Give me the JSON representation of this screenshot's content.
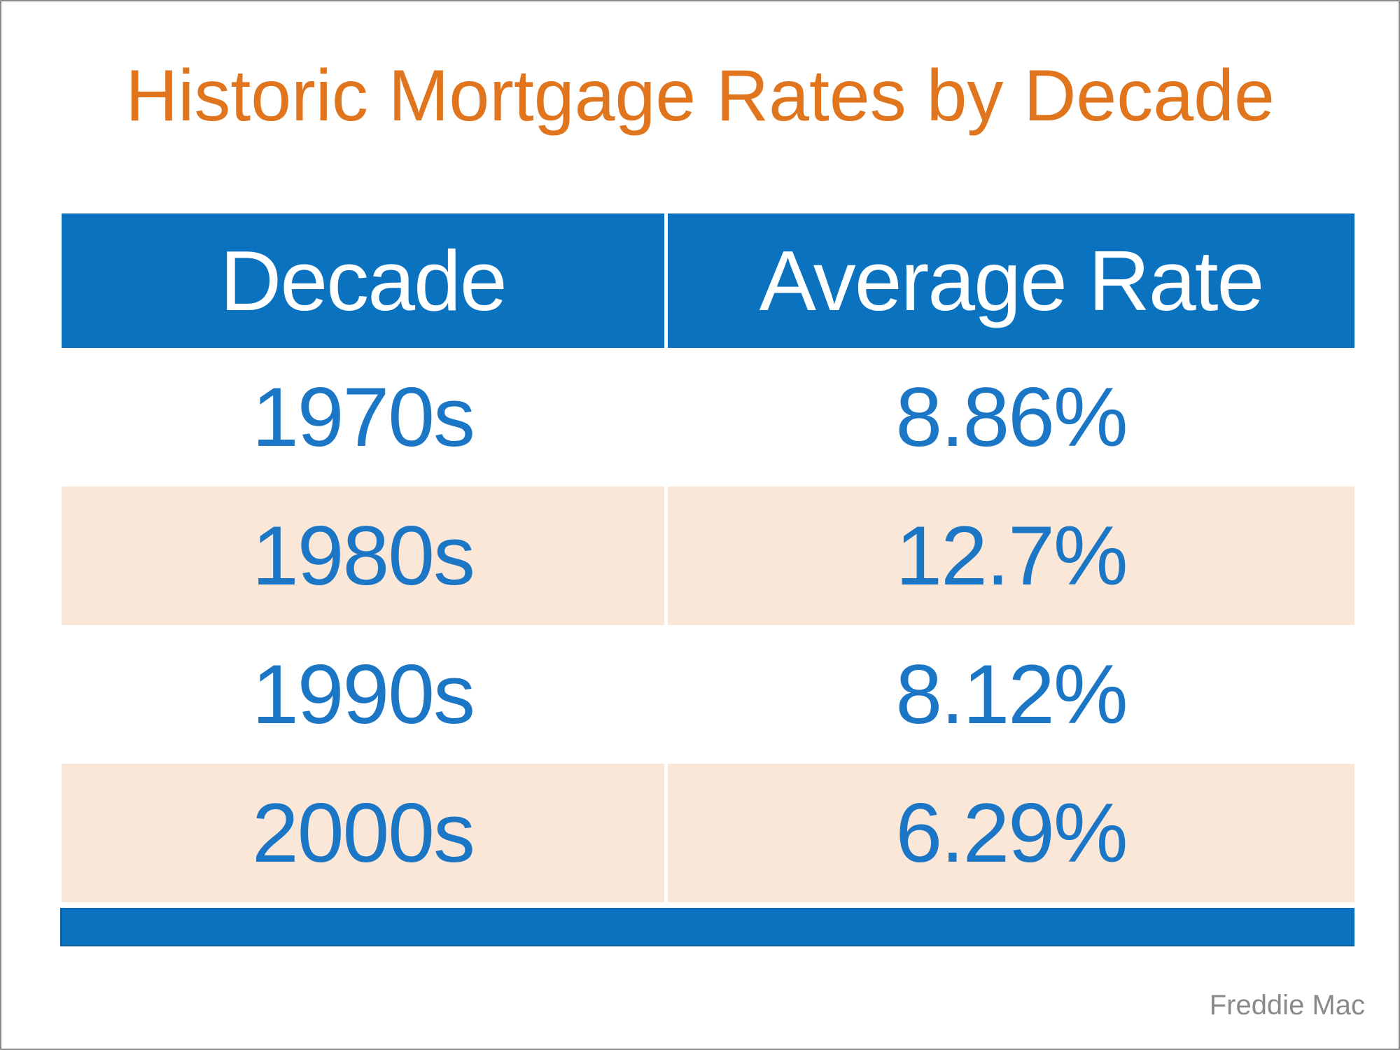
{
  "title": "Historic Mortgage Rates by Decade",
  "source": "Freddie Mac",
  "colors": {
    "accent_blue": "#0a72bf",
    "text_blue": "#1b77c6",
    "row_alt_peach": "#fbe7d8",
    "title_orange": "#e0751e",
    "source_gray": "#8a8a8a",
    "frame_border": "#8c8c8c"
  },
  "table": {
    "headers": [
      "Decade",
      "Average Rate"
    ],
    "rows": [
      {
        "decade": "1970s",
        "rate": "8.86%"
      },
      {
        "decade": "1980s",
        "rate": "12.7%"
      },
      {
        "decade": "1990s",
        "rate": "8.12%"
      },
      {
        "decade": "2000s",
        "rate": "6.29%"
      }
    ]
  },
  "chart_data": {
    "type": "table",
    "title": "Historic Mortgage Rates by Decade",
    "columns": [
      "Decade",
      "Average Rate"
    ],
    "categories": [
      "1970s",
      "1980s",
      "1990s",
      "2000s"
    ],
    "values": [
      8.86,
      12.7,
      8.12,
      6.29
    ],
    "value_labels": [
      "8.86%",
      "12.7%",
      "8.12%",
      "6.29%"
    ],
    "unit": "percent",
    "source": "Freddie Mac",
    "layout_hints": {
      "header_bg": "#0a72bf",
      "alt_row_bg": "#fbe7d8",
      "grid": "off",
      "legend": "none"
    }
  }
}
